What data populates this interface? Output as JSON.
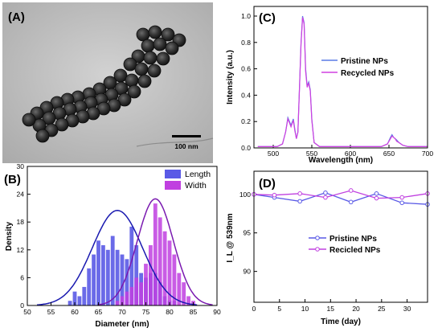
{
  "panels": {
    "A": {
      "label": "(A)",
      "scale_bar": "100 nm"
    }
  },
  "chart_data": [
    {
      "panel": "(B)",
      "type": "bar",
      "xlabel": "Diameter (nm)",
      "ylabel": "Density",
      "xlim": [
        50,
        90
      ],
      "ylim": [
        0,
        30
      ],
      "xticks": [
        50,
        55,
        60,
        65,
        70,
        75,
        80,
        85,
        90
      ],
      "yticks": [
        0,
        6,
        12,
        18,
        24,
        30
      ],
      "legend": "top-right",
      "series": [
        {
          "name": "Length",
          "color": "#5a5ae6",
          "fit_color": "#1a1ab0",
          "x": [
            59,
            60,
            61,
            62,
            63,
            64,
            65,
            66,
            67,
            68,
            69,
            70,
            71,
            72,
            73,
            74,
            75,
            76,
            77,
            78,
            79,
            80,
            81
          ],
          "values": [
            1,
            3,
            2,
            4,
            8,
            11,
            14,
            13,
            12,
            15,
            12,
            11,
            10,
            17,
            13,
            7,
            6,
            7,
            7,
            5,
            2,
            1,
            1
          ],
          "fit": {
            "peak": 20.5,
            "center": 69,
            "sigma": 5.3
          }
        },
        {
          "name": "Width",
          "color": "#c040e0",
          "fit_color": "#7a1ab0",
          "x": [
            69,
            70,
            71,
            72,
            73,
            74,
            75,
            76,
            77,
            78,
            79,
            80,
            81,
            82,
            83,
            84,
            85
          ],
          "values": [
            1,
            2,
            3,
            4,
            6,
            5,
            9,
            13,
            22,
            19,
            16,
            14,
            11,
            7,
            5,
            2,
            1
          ],
          "fit": {
            "peak": 23,
            "center": 77,
            "sigma": 3.8
          }
        }
      ]
    },
    {
      "panel": "(C)",
      "type": "line",
      "xlabel": "Wavelength (nm)",
      "ylabel": "Intensity (a.u.)",
      "xlim": [
        475,
        700
      ],
      "ylim": [
        0,
        1.0
      ],
      "xticks": [
        500,
        550,
        600,
        650,
        700
      ],
      "yticks": [
        0.0,
        0.2,
        0.4,
        0.6,
        0.8,
        1.0
      ],
      "legend": "right",
      "series": [
        {
          "name": "Pristine NPs",
          "color": "#5a7be6",
          "x": [
            480,
            505,
            512,
            516,
            519,
            521,
            523,
            526,
            528,
            530,
            532,
            534,
            536,
            538,
            540,
            542,
            544,
            546,
            548,
            550,
            553,
            560,
            580,
            600,
            620,
            640,
            648,
            652,
            654,
            656,
            658,
            660,
            663,
            668,
            675,
            700
          ],
          "values": [
            0.01,
            0.01,
            0.03,
            0.12,
            0.23,
            0.2,
            0.17,
            0.22,
            0.14,
            0.07,
            0.12,
            0.45,
            0.8,
            1.0,
            0.95,
            0.6,
            0.47,
            0.5,
            0.44,
            0.22,
            0.04,
            0.01,
            0.01,
            0.01,
            0.01,
            0.01,
            0.03,
            0.08,
            0.1,
            0.08,
            0.07,
            0.06,
            0.04,
            0.02,
            0.01,
            0.01
          ]
        },
        {
          "name": "Recycled NPs",
          "color": "#d040e0",
          "x": [
            480,
            505,
            512,
            516,
            519,
            521,
            523,
            526,
            528,
            530,
            532,
            534,
            536,
            538,
            540,
            542,
            544,
            546,
            548,
            550,
            553,
            560,
            580,
            600,
            620,
            640,
            648,
            652,
            654,
            656,
            658,
            660,
            663,
            668,
            675,
            700
          ],
          "values": [
            0.01,
            0.01,
            0.03,
            0.12,
            0.22,
            0.19,
            0.16,
            0.21,
            0.13,
            0.07,
            0.12,
            0.44,
            0.79,
            0.99,
            0.94,
            0.58,
            0.46,
            0.49,
            0.43,
            0.21,
            0.04,
            0.01,
            0.01,
            0.01,
            0.01,
            0.01,
            0.03,
            0.07,
            0.09,
            0.08,
            0.07,
            0.05,
            0.04,
            0.02,
            0.01,
            0.01
          ]
        }
      ]
    },
    {
      "panel": "(D)",
      "type": "line",
      "xlabel": "Time (day)",
      "ylabel": "I_L @ 539nm",
      "xlim": [
        0,
        34
      ],
      "ylim": [
        86,
        103
      ],
      "xticks": [
        0,
        5,
        10,
        15,
        20,
        25,
        30
      ],
      "yticks": [
        90,
        95,
        100
      ],
      "legend": "center",
      "series": [
        {
          "name": "Pristine NPs",
          "color": "#5a5ae6",
          "x": [
            0,
            4,
            9,
            14,
            19,
            24,
            29,
            34
          ],
          "values": [
            100,
            99.6,
            99.1,
            100.2,
            99.0,
            100.1,
            98.9,
            98.7
          ]
        },
        {
          "name": "Recicled NPs",
          "color": "#c040e0",
          "x": [
            0,
            4,
            9,
            14,
            19,
            24,
            29,
            34
          ],
          "values": [
            100,
            99.9,
            100.1,
            99.6,
            100.5,
            99.5,
            99.6,
            100.1
          ]
        }
      ]
    }
  ]
}
